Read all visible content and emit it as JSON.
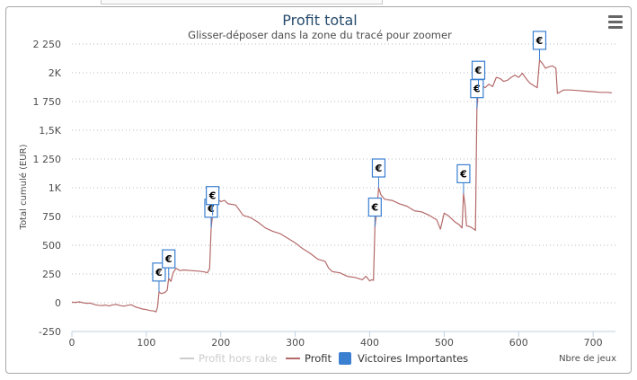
{
  "chart_data": {
    "type": "line",
    "title": "Profit total",
    "subtitle": "Glisser-déposer dans la zone du tracé pour zoomer",
    "xlabel": "Nbre de jeux",
    "ylabel": "Total cumulé (EUR)",
    "xlim": [
      0,
      730
    ],
    "ylim": [
      -250,
      2250
    ],
    "x_ticks": [
      0,
      100,
      200,
      300,
      400,
      500,
      600,
      700
    ],
    "x_tick_labels": [
      "0",
      "100",
      "200",
      "300",
      "400",
      "500",
      "600",
      "700"
    ],
    "y_ticks": [
      -250,
      0,
      250,
      500,
      750,
      1000,
      1250,
      1500,
      1750,
      2000,
      2250
    ],
    "y_tick_labels": [
      "-250",
      "0",
      "250",
      "500",
      "750",
      "1K",
      "1 250",
      "1,5K",
      "1 750",
      "2K",
      "2 250"
    ],
    "grid": "horizontal dotted",
    "legend_position": "bottom",
    "series": [
      {
        "name": "Profit hors rake",
        "color": "#cccccc",
        "visible": false,
        "values": []
      },
      {
        "name": "Profit",
        "color": "#b56a6a",
        "points": [
          [
            0,
            5
          ],
          [
            5,
            3
          ],
          [
            10,
            8
          ],
          [
            15,
            0
          ],
          [
            20,
            -5
          ],
          [
            25,
            -3
          ],
          [
            30,
            -15
          ],
          [
            35,
            -22
          ],
          [
            40,
            -25
          ],
          [
            45,
            -20
          ],
          [
            50,
            -28
          ],
          [
            55,
            -18
          ],
          [
            60,
            -15
          ],
          [
            65,
            -25
          ],
          [
            70,
            -30
          ],
          [
            75,
            -22
          ],
          [
            80,
            -18
          ],
          [
            85,
            -35
          ],
          [
            90,
            -45
          ],
          [
            95,
            -55
          ],
          [
            100,
            -60
          ],
          [
            105,
            -68
          ],
          [
            110,
            -72
          ],
          [
            113,
            -80
          ],
          [
            115,
            -40
          ],
          [
            117,
            95
          ],
          [
            120,
            80
          ],
          [
            125,
            90
          ],
          [
            128,
            110
          ],
          [
            130,
            210
          ],
          [
            133,
            185
          ],
          [
            136,
            260
          ],
          [
            140,
            300
          ],
          [
            145,
            280
          ],
          [
            150,
            285
          ],
          [
            160,
            280
          ],
          [
            170,
            275
          ],
          [
            178,
            268
          ],
          [
            182,
            260
          ],
          [
            185,
            295
          ],
          [
            187,
            650
          ],
          [
            189,
            760
          ],
          [
            191,
            830
          ],
          [
            195,
            905
          ],
          [
            200,
            880
          ],
          [
            205,
            890
          ],
          [
            210,
            860
          ],
          [
            220,
            850
          ],
          [
            230,
            760
          ],
          [
            240,
            740
          ],
          [
            250,
            700
          ],
          [
            260,
            650
          ],
          [
            270,
            620
          ],
          [
            280,
            600
          ],
          [
            290,
            560
          ],
          [
            300,
            520
          ],
          [
            310,
            470
          ],
          [
            320,
            430
          ],
          [
            330,
            380
          ],
          [
            340,
            360
          ],
          [
            345,
            300
          ],
          [
            350,
            270
          ],
          [
            360,
            260
          ],
          [
            370,
            230
          ],
          [
            380,
            220
          ],
          [
            385,
            210
          ],
          [
            390,
            200
          ],
          [
            395,
            230
          ],
          [
            400,
            190
          ],
          [
            403,
            200
          ],
          [
            405,
            195
          ],
          [
            407,
            660
          ],
          [
            409,
            780
          ],
          [
            412,
            1000
          ],
          [
            415,
            940
          ],
          [
            420,
            900
          ],
          [
            430,
            890
          ],
          [
            440,
            860
          ],
          [
            450,
            840
          ],
          [
            460,
            800
          ],
          [
            470,
            790
          ],
          [
            480,
            760
          ],
          [
            490,
            720
          ],
          [
            495,
            640
          ],
          [
            500,
            780
          ],
          [
            505,
            760
          ],
          [
            510,
            730
          ],
          [
            515,
            700
          ],
          [
            520,
            680
          ],
          [
            524,
            650
          ],
          [
            526,
            950
          ],
          [
            528,
            850
          ],
          [
            530,
            670
          ],
          [
            535,
            660
          ],
          [
            540,
            640
          ],
          [
            542,
            630
          ],
          [
            544,
            1690
          ],
          [
            546,
            1850
          ],
          [
            548,
            1990
          ],
          [
            550,
            1890
          ],
          [
            555,
            1870
          ],
          [
            560,
            1900
          ],
          [
            565,
            1880
          ],
          [
            570,
            1960
          ],
          [
            575,
            1950
          ],
          [
            580,
            1925
          ],
          [
            585,
            1935
          ],
          [
            590,
            1960
          ],
          [
            595,
            1980
          ],
          [
            600,
            1960
          ],
          [
            605,
            1995
          ],
          [
            610,
            1950
          ],
          [
            615,
            1910
          ],
          [
            620,
            1890
          ],
          [
            625,
            1870
          ],
          [
            628,
            2110
          ],
          [
            632,
            2080
          ],
          [
            636,
            2040
          ],
          [
            640,
            2050
          ],
          [
            645,
            2060
          ],
          [
            650,
            2040
          ],
          [
            652,
            1820
          ],
          [
            655,
            1830
          ],
          [
            660,
            1850
          ],
          [
            670,
            1850
          ],
          [
            680,
            1845
          ],
          [
            690,
            1840
          ],
          [
            700,
            1835
          ],
          [
            710,
            1830
          ],
          [
            720,
            1830
          ],
          [
            725,
            1825
          ]
        ]
      }
    ],
    "flag_series": {
      "name": "Victoires Importantes",
      "color": "#3a7fd0",
      "symbol": "€",
      "points": [
        [
          117,
          95
        ],
        [
          130,
          210
        ],
        [
          187,
          650
        ],
        [
          189,
          760
        ],
        [
          407,
          660
        ],
        [
          412,
          1000
        ],
        [
          526,
          950
        ],
        [
          544,
          1690
        ],
        [
          546,
          1850
        ],
        [
          628,
          2110
        ]
      ]
    }
  },
  "menu_icon": "hamburger-icon"
}
